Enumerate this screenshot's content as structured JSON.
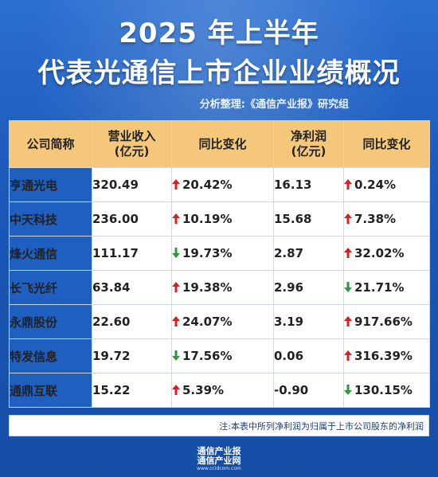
{
  "header": {
    "title_line1": "2025 年上半年",
    "title_line2": "代表光通信上市企业业绩概况",
    "source": "分析整理:《通信产业报》研究组"
  },
  "table": {
    "headers": [
      "公司简称",
      "营业收入\n(亿元)",
      "同比变化",
      "净利润\n(亿元)",
      "同比变化"
    ],
    "rows": [
      {
        "name": "亨通光电",
        "revenue": "320.49",
        "rev_dir": "up",
        "rev_change": "20.42%",
        "profit": "16.13",
        "prof_dir": "up",
        "prof_change": "0.24%"
      },
      {
        "name": "中天科技",
        "revenue": "236.00",
        "rev_dir": "up",
        "rev_change": "10.19%",
        "profit": "15.68",
        "prof_dir": "up",
        "prof_change": "7.38%"
      },
      {
        "name": "烽火通信",
        "revenue": "111.17",
        "rev_dir": "down",
        "rev_change": "19.73%",
        "profit": "2.87",
        "prof_dir": "up",
        "prof_change": "32.02%"
      },
      {
        "name": "长飞光纤",
        "revenue": "63.84",
        "rev_dir": "up",
        "rev_change": "19.38%",
        "profit": "2.96",
        "prof_dir": "down",
        "prof_change": "21.71%"
      },
      {
        "name": "永鼎股份",
        "revenue": "22.60",
        "rev_dir": "up",
        "rev_change": "24.07%",
        "profit": "3.19",
        "prof_dir": "up",
        "prof_change": "917.66%"
      },
      {
        "name": "特发信息",
        "revenue": "19.72",
        "rev_dir": "down",
        "rev_change": "17.56%",
        "profit": "0.06",
        "prof_dir": "up",
        "prof_change": "316.39%"
      },
      {
        "name": "通鼎互联",
        "revenue": "15.22",
        "rev_dir": "up",
        "rev_change": "5.39%",
        "profit": "-0.90",
        "prof_dir": "down",
        "prof_change": "130.15%"
      }
    ]
  },
  "note": "注:本表中所列净利润为归属于上市公司股东的净利润",
  "footer": {
    "logo_line1": "通信产业报",
    "logo_line2": "通信产业网",
    "logo_url": "www.ccidcom.com"
  },
  "colors": {
    "background": "#1d5bbd",
    "header_row": "#f5c77a",
    "name_cell": "#1f5fc0",
    "up_arrow": "#d42020",
    "down_arrow": "#2e9a3c"
  },
  "icons": {
    "up": "arrow-up-icon",
    "down": "arrow-down-icon"
  }
}
